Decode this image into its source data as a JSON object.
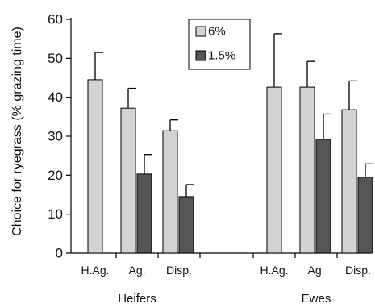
{
  "chart_data": {
    "type": "bar",
    "ylabel": "Choice for ryegrass (% grazing time)",
    "ylim": [
      0,
      60
    ],
    "yticks": [
      0,
      10,
      20,
      30,
      40,
      50,
      60
    ],
    "groups": [
      {
        "label": "Heifers",
        "categories": [
          "H.Ag.",
          "Ag.",
          "Disp."
        ]
      },
      {
        "label": "Ewes",
        "categories": [
          "H.Ag.",
          "Ag.",
          "Disp."
        ]
      }
    ],
    "series": [
      {
        "name": "6%",
        "color": "#d3d3d3",
        "values": [
          44.5,
          37.2,
          31.4,
          42.6,
          42.6,
          36.8
        ],
        "error_upper": [
          51.5,
          42.3,
          34.2,
          56.3,
          49.2,
          44.2
        ]
      },
      {
        "name": "1.5%",
        "color": "#555555",
        "values": [
          null,
          20.3,
          14.5,
          null,
          29.2,
          19.5
        ],
        "error_upper": [
          null,
          25.3,
          17.6,
          null,
          35.7,
          22.9
        ]
      }
    ],
    "legend_position": "top-center",
    "grid": false
  }
}
